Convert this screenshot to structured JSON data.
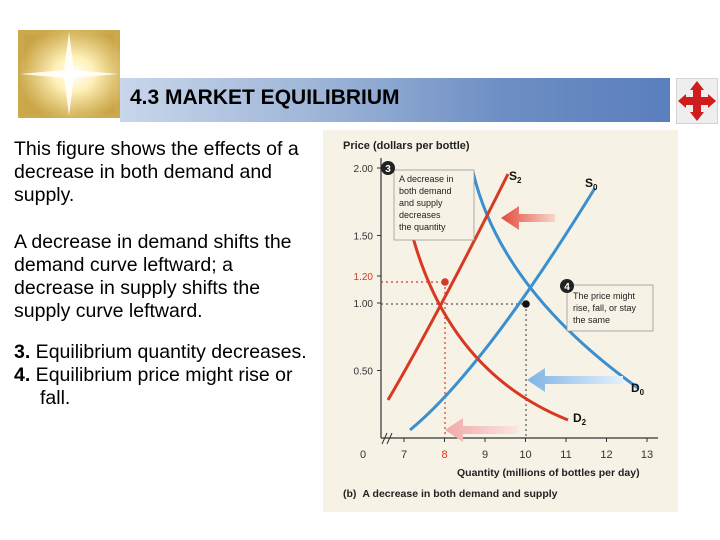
{
  "slide": {
    "title": "4.3 MARKET EQUILIBRIUM",
    "para1": "This figure shows the effects of a decrease in both demand and supply.",
    "para2": "A decrease in demand shifts the demand curve leftward; a decrease in supply shifts the supply curve leftward.",
    "list": [
      {
        "num": "3.",
        "text": " Equilibrium quantity decreases."
      },
      {
        "num": "4.",
        "text": " Equilibrium price might rise or fall."
      }
    ]
  },
  "chart_data": {
    "type": "line",
    "ylabel": "Price (dollars per bottle)",
    "xlabel": "Quantity (millions of bottles per day)",
    "caption_prefix": "(b)",
    "caption": "A decrease in both demand and supply",
    "y_ticks": [
      "0.50",
      "1.00",
      "1.20",
      "1.50",
      "2.00"
    ],
    "x_ticks": [
      "0",
      "7",
      "8",
      "9",
      "10",
      "11",
      "12",
      "13"
    ],
    "series": [
      {
        "name": "S0",
        "label_main": "S",
        "label_sub": "0",
        "color": "#3a8fd0"
      },
      {
        "name": "S2",
        "label_main": "S",
        "label_sub": "2",
        "color": "#d73a22"
      },
      {
        "name": "D0",
        "label_main": "D",
        "label_sub": "0",
        "color": "#3a8fd0"
      },
      {
        "name": "D2",
        "label_main": "D",
        "label_sub": "2",
        "color": "#d73a22"
      }
    ],
    "points": [
      {
        "label": "original equilibrium",
        "x": 10,
        "y": 1.0
      },
      {
        "label": "new equilibrium",
        "x": 8,
        "y": 1.2
      }
    ],
    "callouts": [
      {
        "number": "3",
        "lines": [
          "A decrease in",
          "both demand",
          "and supply",
          "decreases",
          "the quantity"
        ]
      },
      {
        "number": "4",
        "lines": [
          "The price might",
          "rise, fall, or stay",
          "the same"
        ]
      }
    ]
  }
}
